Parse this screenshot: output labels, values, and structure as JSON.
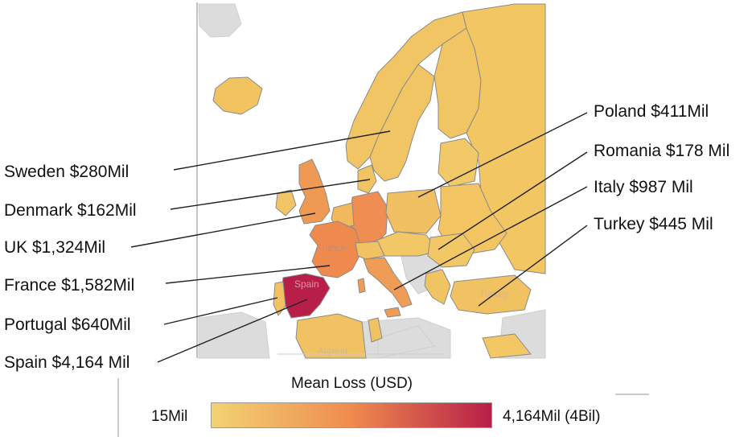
{
  "colors": {
    "scale_low": "#f3d373",
    "scale_mid": "#ef8b4f",
    "scale_high": "#b71f48",
    "ocean": "#ffffff",
    "non_data_land": "#dcdcdc",
    "country_border": "#8a8a8a"
  },
  "left_labels": [
    {
      "country": "Sweden",
      "text": "Sweden $280Mil",
      "value_mil": 280
    },
    {
      "country": "Denmark",
      "text": "Denmark $162Mil",
      "value_mil": 162
    },
    {
      "country": "UK",
      "text": "UK $1,324Mil",
      "value_mil": 1324
    },
    {
      "country": "France",
      "text": "France $1,582Mil",
      "value_mil": 1582
    },
    {
      "country": "Portugal",
      "text": "Portugal $640Mil",
      "value_mil": 640
    },
    {
      "country": "Spain",
      "text": "Spain $4,164 Mil",
      "value_mil": 4164
    }
  ],
  "right_labels": [
    {
      "country": "Poland",
      "text": "Poland $411Mil",
      "value_mil": 411
    },
    {
      "country": "Romania",
      "text": "Romania $178 Mil",
      "value_mil": 178
    },
    {
      "country": "Italy",
      "text": "Italy $987 Mil",
      "value_mil": 987
    },
    {
      "country": "Turkey",
      "text": "Turkey $445 Mil",
      "value_mil": 445
    }
  ],
  "map_labels": {
    "france": "France",
    "spain": "Spain",
    "turkey": "Turkey",
    "algeria": "Algeria"
  },
  "legend": {
    "title": "Mean Loss (USD)",
    "min_label": "15Mil",
    "max_label": "4,164Mil (4Bil)",
    "min_value_mil": 15,
    "max_value_mil": 4164
  }
}
